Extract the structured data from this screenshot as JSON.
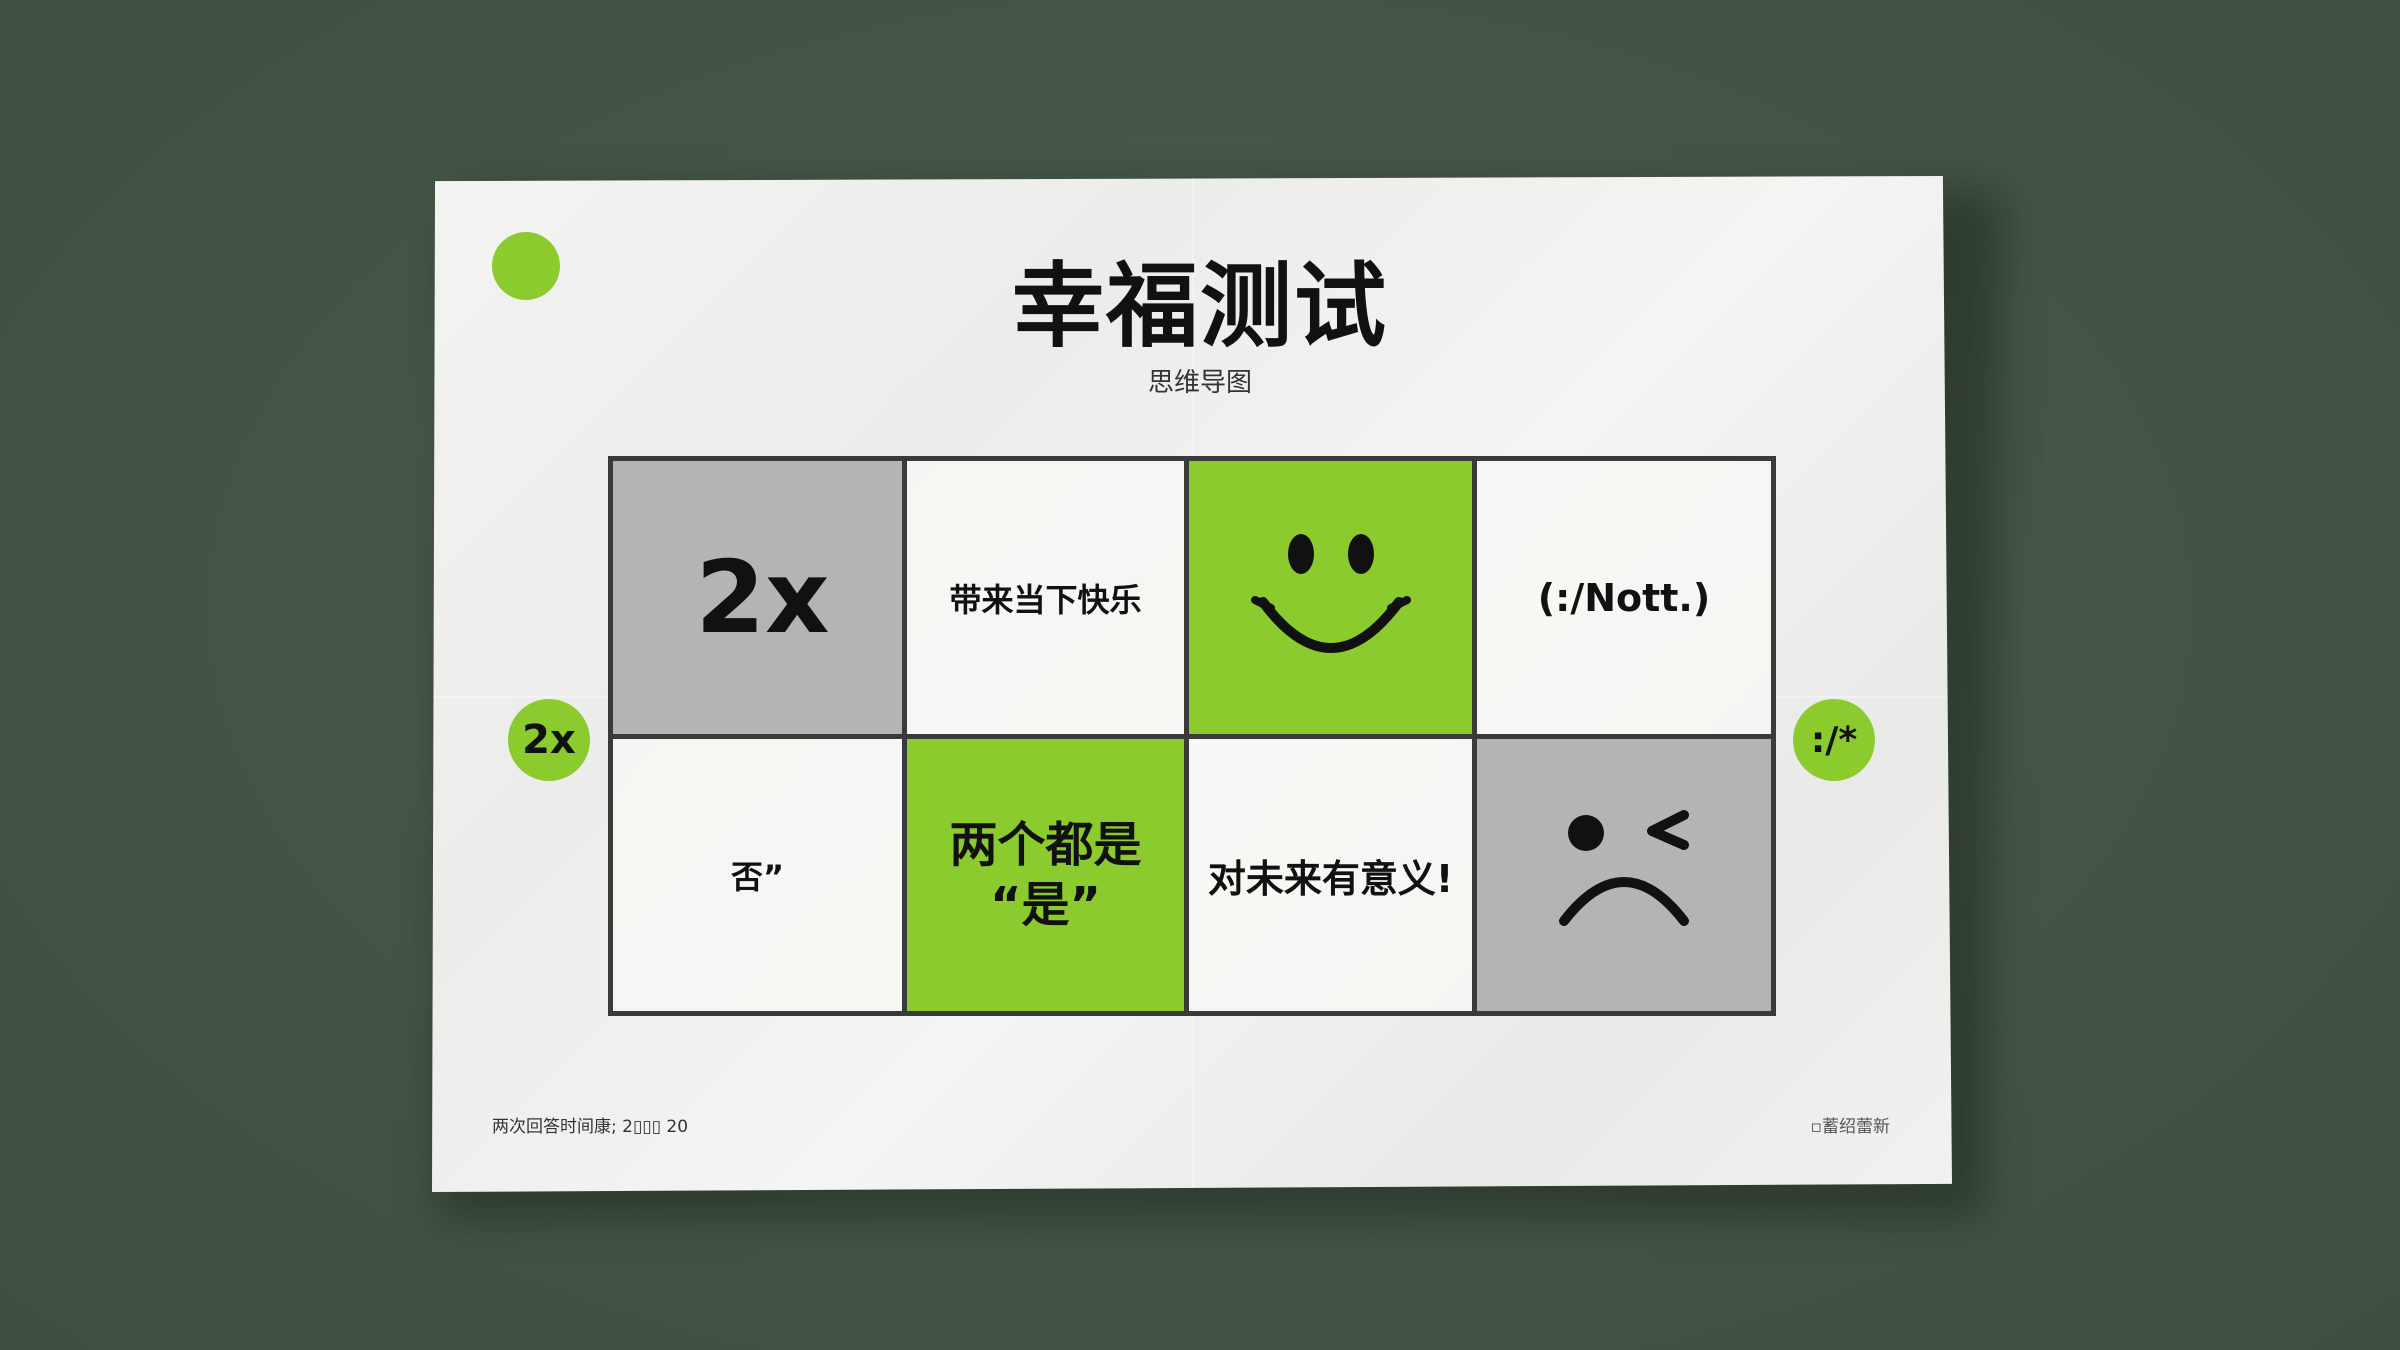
{
  "title": "幸福测试",
  "subtitle": "思维导图",
  "colors": {
    "background": "#455747",
    "paper": "#f1f1ef",
    "accent_green": "#8ccb2e",
    "gray_cell": "#b4b4b4",
    "line": "#3a3a3a",
    "text": "#111111"
  },
  "grid": {
    "row1": {
      "c1": "2x",
      "c2": "带来当下快乐",
      "c3_icon": "smiley-face-icon",
      "c4": "(:/Nott.)"
    },
    "row2": {
      "c1": "否”",
      "c2": "两个都是\n“是”",
      "c3": "对未来有意义!",
      "c4_icon": "frown-wink-face-icon"
    }
  },
  "side_badges": {
    "left": "2x",
    "right": ":/*"
  },
  "footer": {
    "left": "两次回答时间康; 2▯▯▯ 20",
    "right": "▫蓄绍蕾新"
  }
}
